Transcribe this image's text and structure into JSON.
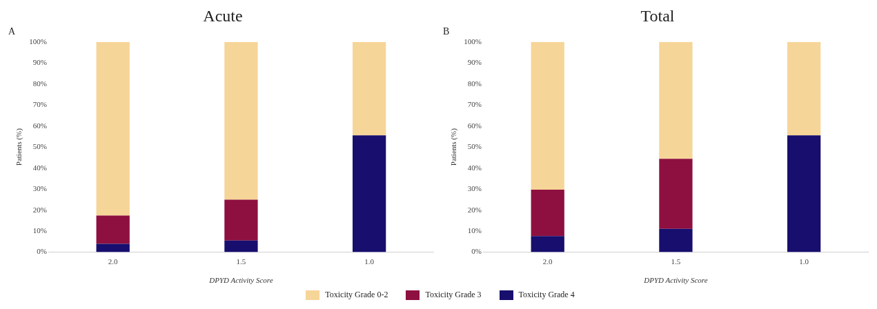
{
  "chart_data": [
    {
      "type": "bar",
      "title": "Acute",
      "annotations": [
        "A"
      ],
      "xlabel": "DPYD Activity Score",
      "ylabel": "Patients (%)",
      "categories": [
        "2.0",
        "1.5",
        "1.0"
      ],
      "stacked": true,
      "ylim": [
        0,
        100
      ],
      "yticks": [
        {
          "value": 0,
          "label": "0%"
        },
        {
          "value": 10,
          "label": "10%"
        },
        {
          "value": 20,
          "label": "20%"
        },
        {
          "value": 30,
          "label": "30%"
        },
        {
          "value": 40,
          "label": "40%"
        },
        {
          "value": 50,
          "label": "50%"
        },
        {
          "value": 60,
          "label": "60%"
        },
        {
          "value": 70,
          "label": "70%"
        },
        {
          "value": 80,
          "label": "80%"
        },
        {
          "value": 90,
          "label": "90%"
        },
        {
          "value": 100,
          "label": "100%"
        }
      ],
      "grid": false,
      "legend": "bottom",
      "series": [
        {
          "name": "Toxicity Grade 4",
          "color": "#170e6e",
          "values": [
            4,
            5.5,
            55.6
          ]
        },
        {
          "name": "Toxicity Grade 3",
          "color": "#8e1040",
          "values": [
            13.4,
            19.5,
            0
          ]
        },
        {
          "name": "Toxicity Grade 0-2",
          "color": "#f6d598",
          "values": [
            82.6,
            75,
            44.4
          ]
        }
      ]
    },
    {
      "type": "bar",
      "title": "Total",
      "annotations": [
        "B"
      ],
      "xlabel": "DPYD Activity Score",
      "ylabel": "Patients (%)",
      "categories": [
        "2.0",
        "1.5",
        "1.0"
      ],
      "stacked": true,
      "ylim": [
        0,
        100
      ],
      "yticks": [
        {
          "value": 0,
          "label": "0%"
        },
        {
          "value": 10,
          "label": "10%"
        },
        {
          "value": 20,
          "label": "20%"
        },
        {
          "value": 30,
          "label": "30%"
        },
        {
          "value": 40,
          "label": "40%"
        },
        {
          "value": 50,
          "label": "50%"
        },
        {
          "value": 60,
          "label": "60%"
        },
        {
          "value": 70,
          "label": "70%"
        },
        {
          "value": 80,
          "label": "80%"
        },
        {
          "value": 90,
          "label": "90%"
        },
        {
          "value": 100,
          "label": "100%"
        }
      ],
      "grid": false,
      "series": [
        {
          "color": "#170e6e",
          "values": [
            7.7,
            11.1,
            55.6
          ]
        },
        {
          "color": "#8e1040",
          "values": [
            22,
            33.3,
            0
          ]
        },
        {
          "color": "#f6d598",
          "values": [
            70.3,
            55.6,
            44.4
          ]
        }
      ]
    }
  ]
}
